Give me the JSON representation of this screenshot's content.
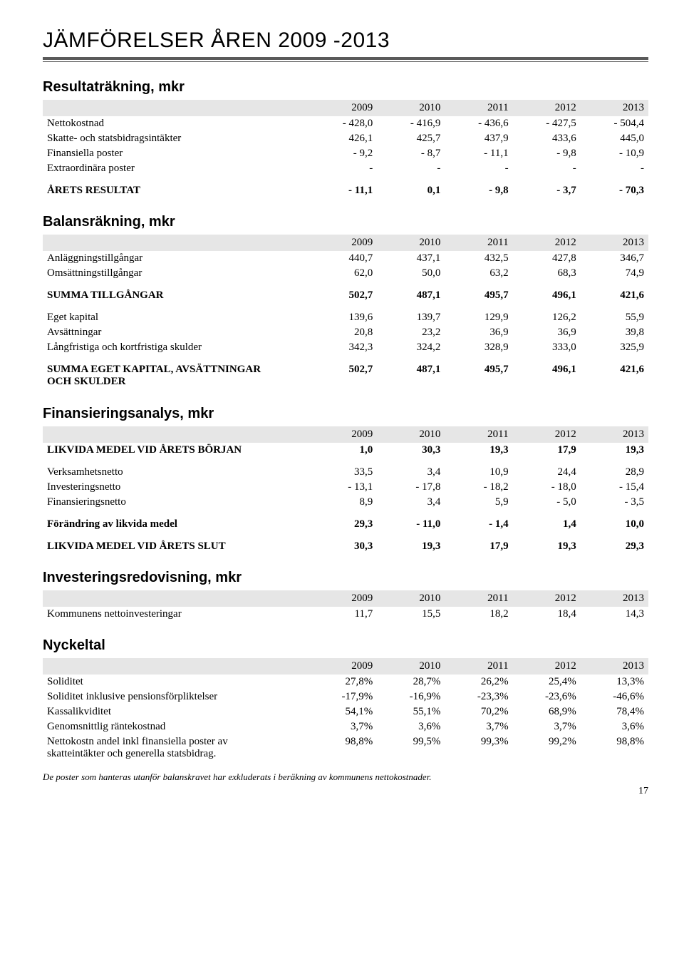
{
  "page_title": "JÄMFÖRELSER ÅREN 2009 -2013",
  "years": [
    "2009",
    "2010",
    "2011",
    "2012",
    "2013"
  ],
  "sections": {
    "resultat": {
      "heading": "Resultaträkning, mkr",
      "rows": [
        {
          "label": "Nettokostnad",
          "vals": [
            "- 428,0",
            "- 416,9",
            "- 436,6",
            "- 427,5",
            "- 504,4"
          ],
          "bold": false
        },
        {
          "label": "Skatte- och statsbidragsintäkter",
          "vals": [
            "426,1",
            "425,7",
            "437,9",
            "433,6",
            "445,0"
          ],
          "bold": false
        },
        {
          "label": "Finansiella poster",
          "vals": [
            "- 9,2",
            "- 8,7",
            "- 11,1",
            "- 9,8",
            "- 10,9"
          ],
          "bold": false
        },
        {
          "label": "Extraordinära poster",
          "vals": [
            "-",
            "-",
            "-",
            "-",
            "-"
          ],
          "bold": false
        },
        {
          "label": "ÅRETS RESULTAT",
          "vals": [
            "- 11,1",
            "0,1",
            "- 9,8",
            "- 3,7",
            "- 70,3"
          ],
          "bold": true,
          "spaceBefore": true
        }
      ]
    },
    "balans": {
      "heading": "Balansräkning, mkr",
      "rows": [
        {
          "label": "Anläggningstillgångar",
          "vals": [
            "440,7",
            "437,1",
            "432,5",
            "427,8",
            "346,7"
          ],
          "bold": false
        },
        {
          "label": "Omsättningstillgångar",
          "vals": [
            "62,0",
            "50,0",
            "63,2",
            "68,3",
            "74,9"
          ],
          "bold": false
        },
        {
          "label": "SUMMA TILLGÅNGAR",
          "vals": [
            "502,7",
            "487,1",
            "495,7",
            "496,1",
            "421,6"
          ],
          "bold": true,
          "spaceBefore": true
        },
        {
          "label": "Eget kapital",
          "vals": [
            "139,6",
            "139,7",
            "129,9",
            "126,2",
            "55,9"
          ],
          "bold": false,
          "spaceBefore": true
        },
        {
          "label": "Avsättningar",
          "vals": [
            "20,8",
            "23,2",
            "36,9",
            "36,9",
            "39,8"
          ],
          "bold": false
        },
        {
          "label": "Långfristiga och kortfristiga skulder",
          "vals": [
            "342,3",
            "324,2",
            "328,9",
            "333,0",
            "325,9"
          ],
          "bold": false
        },
        {
          "label": "SUMMA EGET KAPITAL, AVSÄTTNINGAR OCH SKULDER",
          "vals": [
            "502,7",
            "487,1",
            "495,7",
            "496,1",
            "421,6"
          ],
          "bold": true,
          "spaceBefore": true,
          "twoline": true
        }
      ]
    },
    "finans": {
      "heading": "Finansieringsanalys, mkr",
      "rows": [
        {
          "label": "LIKVIDA MEDEL VID ÅRETS BÖRJAN",
          "vals": [
            "1,0",
            "30,3",
            "19,3",
            "17,9",
            "19,3"
          ],
          "bold": true
        },
        {
          "label": "Verksamhetsnetto",
          "vals": [
            "33,5",
            "3,4",
            "10,9",
            "24,4",
            "28,9"
          ],
          "bold": false,
          "spaceBefore": true
        },
        {
          "label": "Investeringsnetto",
          "vals": [
            "- 13,1",
            "- 17,8",
            "- 18,2",
            "- 18,0",
            "- 15,4"
          ],
          "bold": false
        },
        {
          "label": "Finansieringsnetto",
          "vals": [
            "8,9",
            "3,4",
            "5,9",
            "- 5,0",
            "- 3,5"
          ],
          "bold": false
        },
        {
          "label": "Förändring av likvida medel",
          "vals": [
            "29,3",
            "- 11,0",
            "- 1,4",
            "1,4",
            "10,0"
          ],
          "bold": true,
          "spaceBefore": true
        },
        {
          "label": "LIKVIDA MEDEL VID ÅRETS SLUT",
          "vals": [
            "30,3",
            "19,3",
            "17,9",
            "19,3",
            "29,3"
          ],
          "bold": true,
          "spaceBefore": true
        }
      ]
    },
    "invest": {
      "heading": "Investeringsredovisning, mkr",
      "rows": [
        {
          "label": "Kommunens nettoinvesteringar",
          "vals": [
            "11,7",
            "15,5",
            "18,2",
            "18,4",
            "14,3"
          ],
          "bold": false
        }
      ]
    },
    "nyckel": {
      "heading": "Nyckeltal",
      "rows": [
        {
          "label": "Soliditet",
          "vals": [
            "27,8%",
            "28,7%",
            "26,2%",
            "25,4%",
            "13,3%"
          ],
          "bold": false
        },
        {
          "label": "Soliditet inklusive pensionsförpliktelser",
          "vals": [
            "-17,9%",
            "-16,9%",
            "-23,3%",
            "-23,6%",
            "-46,6%"
          ],
          "bold": false
        },
        {
          "label": "Kassalikviditet",
          "vals": [
            "54,1%",
            "55,1%",
            "70,2%",
            "68,9%",
            "78,4%"
          ],
          "bold": false
        },
        {
          "label": "Genomsnittlig räntekostnad",
          "vals": [
            "3,7%",
            "3,6%",
            "3,7%",
            "3,7%",
            "3,6%"
          ],
          "bold": false
        },
        {
          "label": "Nettokostn andel inkl finansiella poster av skatteintäkter och generella statsbidrag.",
          "vals": [
            "98,8%",
            "99,5%",
            "99,3%",
            "99,2%",
            "98,8%"
          ],
          "bold": false,
          "twoline": true
        }
      ]
    }
  },
  "footnote": "De poster som hanteras utanför balanskravet har exkluderats i beräkning av kommunens nettokostnader.",
  "page_number": "17"
}
